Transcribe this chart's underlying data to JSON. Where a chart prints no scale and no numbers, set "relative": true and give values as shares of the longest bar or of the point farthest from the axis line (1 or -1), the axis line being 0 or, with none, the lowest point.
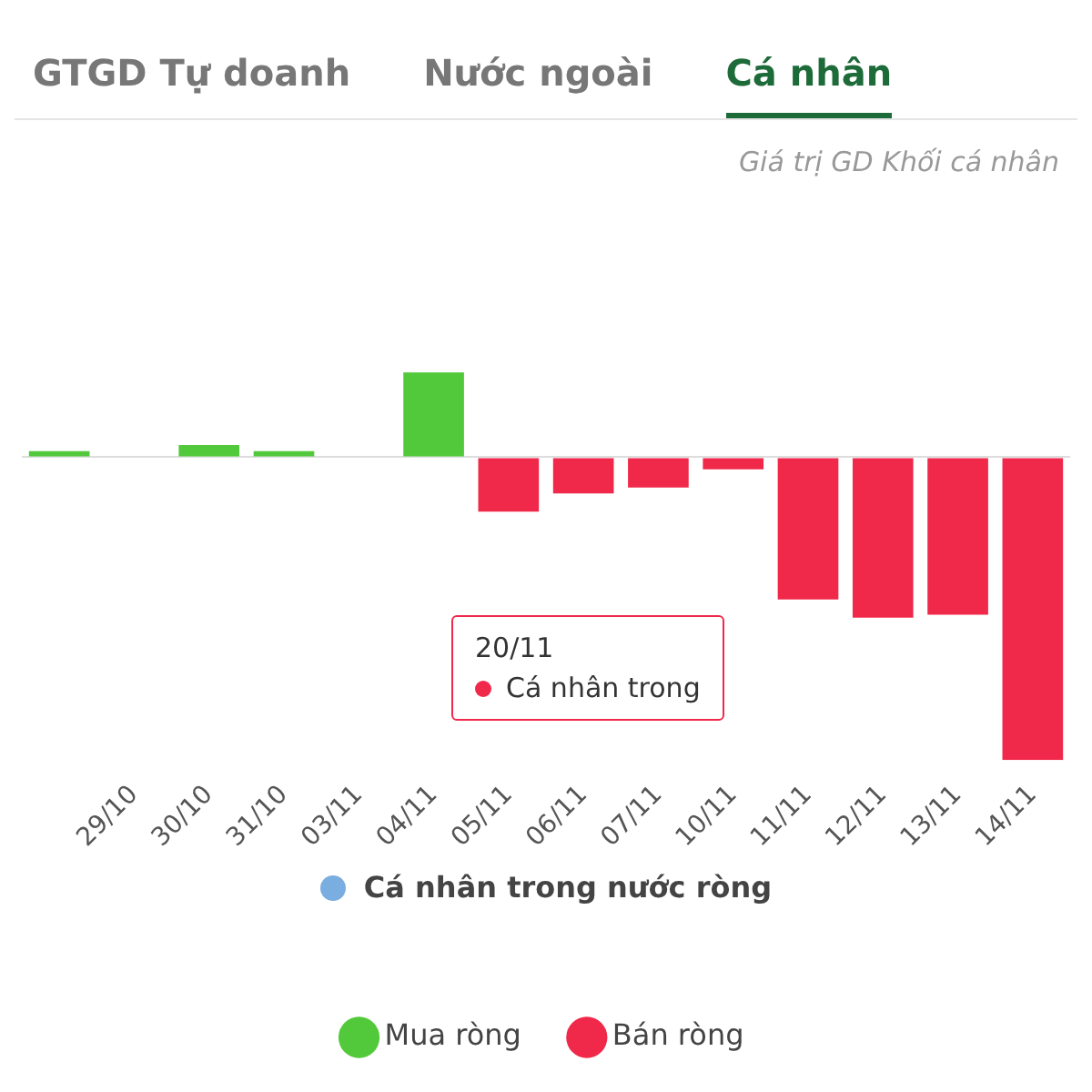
{
  "chart_data": {
    "type": "bar",
    "subtitle": "Giá trị GD Khối cá nhân",
    "relative": true,
    "stacked": true,
    "legend": "bottom",
    "categories": [
      null,
      "29/10",
      "30/10",
      "31/10",
      "03/11",
      "04/11",
      "05/11",
      "06/11",
      "07/11",
      "10/11",
      "11/11",
      "12/11",
      "13/11",
      "14/11"
    ],
    "series": [
      {
        "name": "Mua ròng",
        "color": "#52c93b",
        "values": [
          0.02,
          null,
          0.04,
          0.02,
          null,
          0.28,
          null,
          null,
          null,
          null,
          null,
          null,
          null,
          null
        ]
      },
      {
        "name": "Bán ròng",
        "color": "#f0284a",
        "values": [
          null,
          null,
          null,
          null,
          null,
          null,
          -0.18,
          -0.12,
          -0.1,
          -0.04,
          -0.47,
          -0.53,
          -0.52,
          -1
        ]
      }
    ],
    "annotations": [
      "GTGD Tự doanh",
      "Nước ngoài",
      "Cá nhân",
      "Cá nhân trong nước ròng",
      "20/11",
      "Cá nhân trong"
    ]
  }
}
